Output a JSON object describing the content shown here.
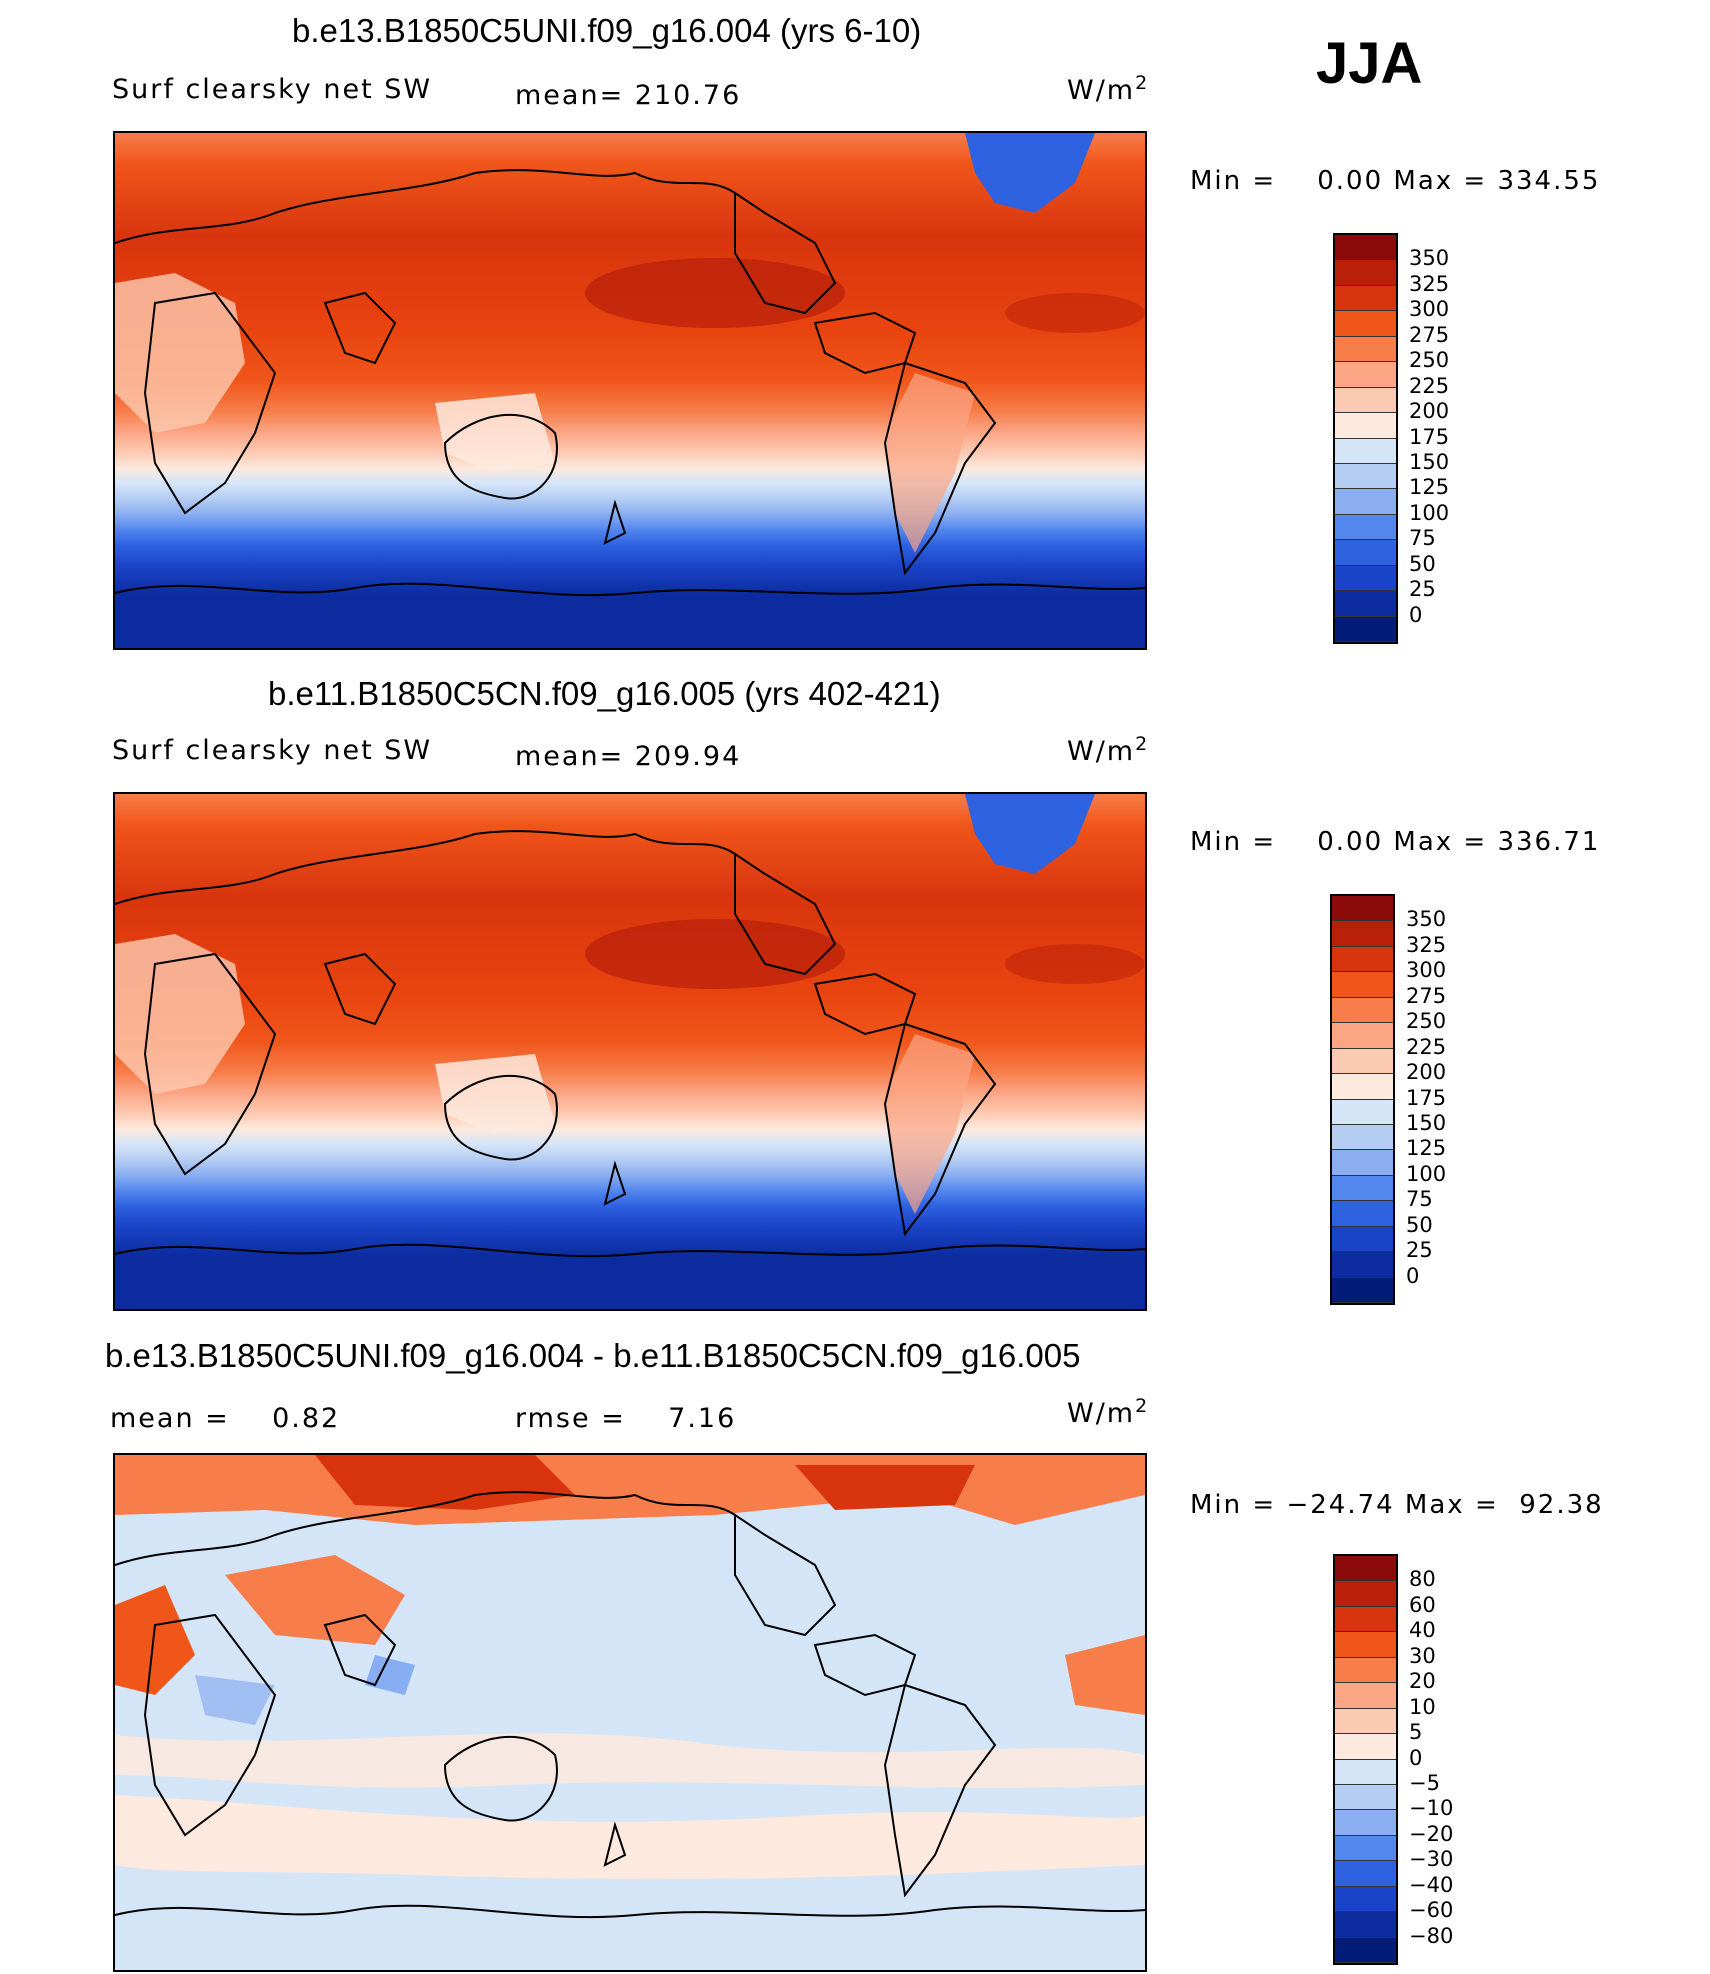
{
  "season": "JJA",
  "panels": [
    {
      "title": "b.e13.B1850C5UNI.f09_g16.004 (yrs 6-10)",
      "left_label": "Surf clearsky net SW",
      "center_label": "mean= 210.76",
      "units": "W/m",
      "units_exp": "2",
      "min_max": "Min =    0.00 Max = 334.55",
      "colorbar_labels": [
        "350",
        "325",
        "300",
        "275",
        "250",
        "225",
        "200",
        "175",
        "150",
        "125",
        "100",
        "75",
        "50",
        "25",
        "0"
      ],
      "colors": [
        "#8b0a0a",
        "#b8200a",
        "#d8350e",
        "#f0561a",
        "#f77d4a",
        "#fba584",
        "#fccab2",
        "#fde9dd",
        "#d5e5f8",
        "#b5cdf3",
        "#8aaef0",
        "#5487ee",
        "#2e62e0",
        "#1a44c8",
        "#0b2b9e",
        "#031c78"
      ]
    },
    {
      "title": "b.e11.B1850C5CN.f09_g16.005 (yrs 402-421)",
      "left_label": "Surf clearsky net SW",
      "center_label": "mean= 209.94",
      "units": "W/m",
      "units_exp": "2",
      "min_max": "Min =    0.00 Max = 336.71",
      "colorbar_labels": [
        "350",
        "325",
        "300",
        "275",
        "250",
        "225",
        "200",
        "175",
        "150",
        "125",
        "100",
        "75",
        "50",
        "25",
        "0"
      ],
      "colors": [
        "#8b0a0a",
        "#b8200a",
        "#d8350e",
        "#f0561a",
        "#f77d4a",
        "#fba584",
        "#fccab2",
        "#fde9dd",
        "#d5e5f8",
        "#b5cdf3",
        "#8aaef0",
        "#5487ee",
        "#2e62e0",
        "#1a44c8",
        "#0b2b9e",
        "#031c78"
      ]
    },
    {
      "title": "b.e13.B1850C5UNI.f09_g16.004 - b.e11.B1850C5CN.f09_g16.005",
      "left_label": "mean =    0.82",
      "center_label": "rmse =    7.16",
      "units": "W/m",
      "units_exp": "2",
      "min_max": "Min = −24.74 Max =  92.38",
      "colorbar_labels": [
        "80",
        "60",
        "40",
        "30",
        "20",
        "10",
        "5",
        "0",
        "−5",
        "−10",
        "−20",
        "−30",
        "−40",
        "−60",
        "−80"
      ],
      "colors": [
        "#8b0a0a",
        "#b8200a",
        "#d8350e",
        "#f0561a",
        "#f77d4a",
        "#fba584",
        "#fccab2",
        "#fde9dd",
        "#d5e5f8",
        "#b5cdf3",
        "#8aaef0",
        "#5487ee",
        "#2e62e0",
        "#1a44c8",
        "#0b2b9e",
        "#031c78"
      ]
    }
  ]
}
